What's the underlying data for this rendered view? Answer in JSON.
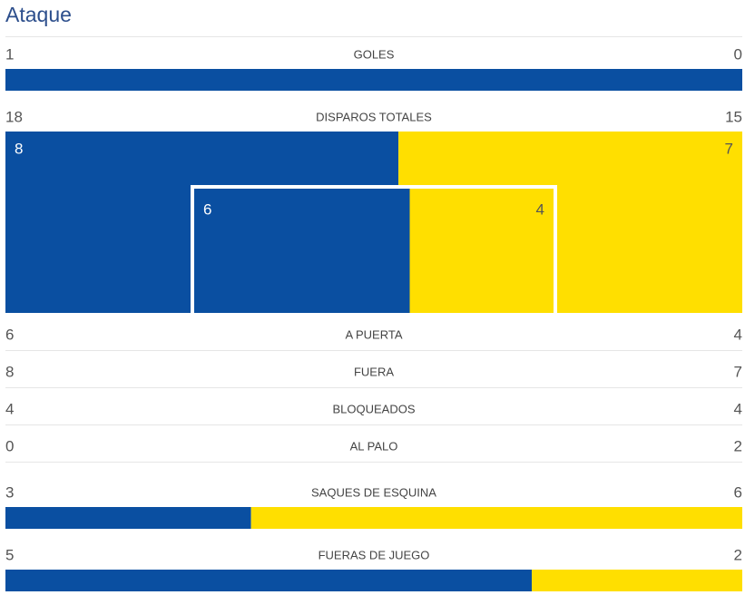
{
  "title": "Ataque",
  "colors": {
    "home": "#0a4fa1",
    "away": "#ffdf00"
  },
  "rows": [
    {
      "label": "GOLES",
      "home": 1,
      "away": 0,
      "style": "bar"
    },
    {
      "label": "DISPAROS TOTALES",
      "home": 18,
      "away": 15,
      "style": "shot_map"
    },
    {
      "label": "A PUERTA",
      "home": 6,
      "away": 4,
      "style": "plain"
    },
    {
      "label": "FUERA",
      "home": 8,
      "away": 7,
      "style": "plain"
    },
    {
      "label": "BLOQUEADOS",
      "home": 4,
      "away": 4,
      "style": "plain"
    },
    {
      "label": "AL PALO",
      "home": 0,
      "away": 2,
      "style": "plain"
    },
    {
      "label": "SAQUES DE ESQUINA",
      "home": 3,
      "away": 6,
      "style": "bar"
    },
    {
      "label": "FUERAS DE JUEGO",
      "home": 5,
      "away": 2,
      "style": "bar"
    }
  ],
  "shot_map": {
    "outer": {
      "home": 8,
      "away": 7
    },
    "inner": {
      "home": 6,
      "away": 4
    }
  }
}
